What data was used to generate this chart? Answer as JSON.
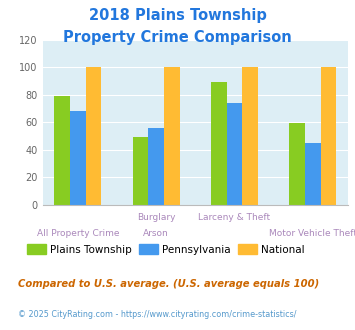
{
  "title_line1": "2018 Plains Township",
  "title_line2": "Property Crime Comparison",
  "title_color": "#2277dd",
  "plains_values": [
    79,
    49,
    89,
    59
  ],
  "pennsylvania_values": [
    68,
    56,
    74,
    45
  ],
  "national_values": [
    100,
    100,
    100,
    100
  ],
  "plains_color": "#88cc22",
  "pennsylvania_color": "#4499ee",
  "national_color": "#ffbb33",
  "ylim": [
    0,
    120
  ],
  "yticks": [
    0,
    20,
    40,
    60,
    80,
    100,
    120
  ],
  "plot_bg": "#ddeef5",
  "legend_labels": [
    "Plains Township",
    "Pennsylvania",
    "National"
  ],
  "top_labels": [
    "",
    "Burglary",
    "Larceny & Theft",
    ""
  ],
  "bottom_labels": [
    "All Property Crime",
    "Arson",
    "",
    "Motor Vehicle Theft"
  ],
  "x_label_color": "#aa88bb",
  "footnote1": "Compared to U.S. average. (U.S. average equals 100)",
  "footnote2": "© 2025 CityRating.com - https://www.cityrating.com/crime-statistics/",
  "footnote1_color": "#cc6600",
  "footnote2_color": "#5599cc"
}
